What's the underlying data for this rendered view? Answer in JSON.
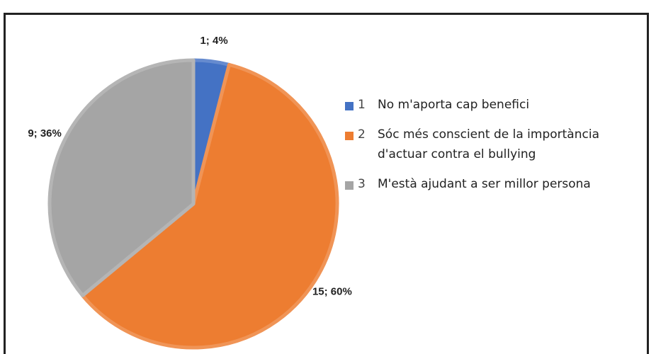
{
  "chart_data": {
    "type": "pie",
    "categories": [
      "1",
      "2",
      "3"
    ],
    "descriptions": [
      "No m'aporta cap benefici",
      "Sóc més conscient de la importància d'actuar contra el bullying",
      "M'està ajudant a ser millor persona"
    ],
    "values": [
      1,
      15,
      9
    ],
    "value_labels": [
      "1; 4%",
      "15; 60%",
      "9; 36%"
    ],
    "colors": [
      "#4472c4",
      "#ed7d31",
      "#a5a5a5"
    ],
    "legend": "right"
  }
}
